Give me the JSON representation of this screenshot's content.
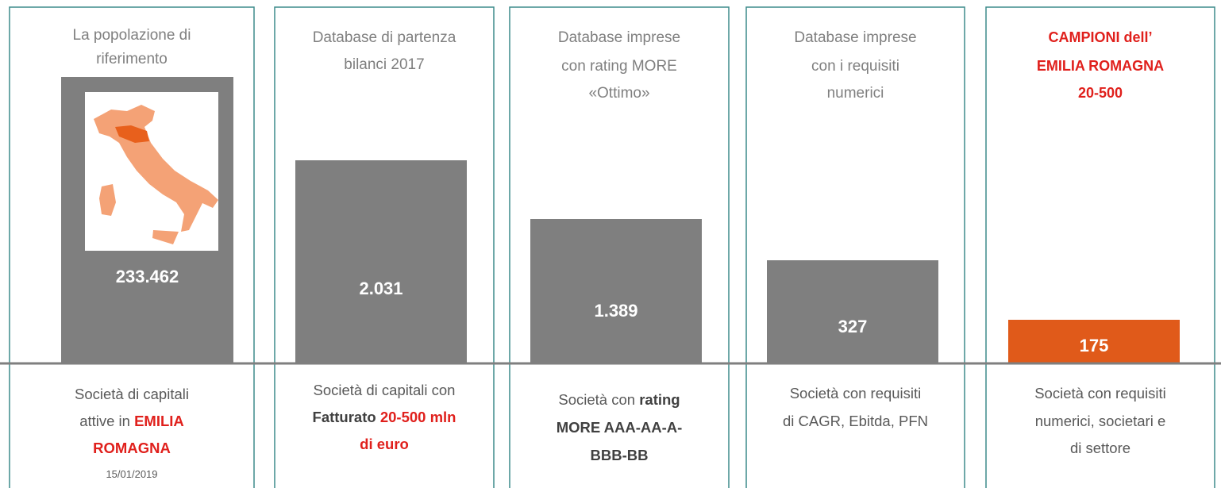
{
  "panels": [
    {
      "title": [
        "La popolazione di",
        "riferimento"
      ],
      "title_style": "plain",
      "value": "233.462",
      "bar_color": "#7f7f7f",
      "description": [
        [
          {
            "text": "Società di capitali",
            "style": "plain"
          }
        ],
        [
          {
            "text": "attive in ",
            "style": "plain"
          },
          {
            "text": "EMILIA",
            "style": "red-bold"
          }
        ],
        [
          {
            "text": "ROMAGNA",
            "style": "red-bold"
          }
        ],
        [
          {
            "text": "15/01/2019",
            "style": "small"
          }
        ]
      ]
    },
    {
      "title": [
        "Database di partenza",
        "bilanci 2017"
      ],
      "title_style": "plain",
      "value": "2.031",
      "bar_color": "#7f7f7f",
      "description": [
        [
          {
            "text": "Società di capitali con",
            "style": "plain"
          }
        ],
        [
          {
            "text": "Fatturato ",
            "style": "bold"
          },
          {
            "text": "20-500 mln",
            "style": "red-bold"
          }
        ],
        [
          {
            "text": "di euro",
            "style": "red-bold"
          }
        ]
      ]
    },
    {
      "title": [
        "Database imprese",
        "con rating MORE",
        "«Ottimo»"
      ],
      "title_style": "plain",
      "value": "1.389",
      "bar_color": "#7f7f7f",
      "description": [
        [
          {
            "text": "Società con ",
            "style": "plain"
          },
          {
            "text": "rating",
            "style": "bold"
          }
        ],
        [
          {
            "text": "MORE AAA-AA-A-",
            "style": "bold"
          }
        ],
        [
          {
            "text": "BBB-BB",
            "style": "bold"
          }
        ]
      ]
    },
    {
      "title": [
        "Database imprese",
        "con i requisiti",
        "numerici"
      ],
      "title_style": "plain",
      "value": "327",
      "bar_color": "#7f7f7f",
      "description": [
        [
          {
            "text": "Società con requisiti",
            "style": "plain"
          }
        ],
        [
          {
            "text": "di CAGR, Ebitda, PFN",
            "style": "plain"
          }
        ]
      ]
    },
    {
      "title": [
        "CAMPIONI dell’",
        "EMILIA ROMAGNA",
        "20-500"
      ],
      "title_style": "red-bold",
      "value": "175",
      "bar_color": "#e05a1a",
      "description": [
        [
          {
            "text": "Società con requisiti",
            "style": "plain"
          }
        ],
        [
          {
            "text": "numerici, societari e",
            "style": "plain"
          }
        ],
        [
          {
            "text": "di settore",
            "style": "plain"
          }
        ]
      ]
    }
  ]
}
